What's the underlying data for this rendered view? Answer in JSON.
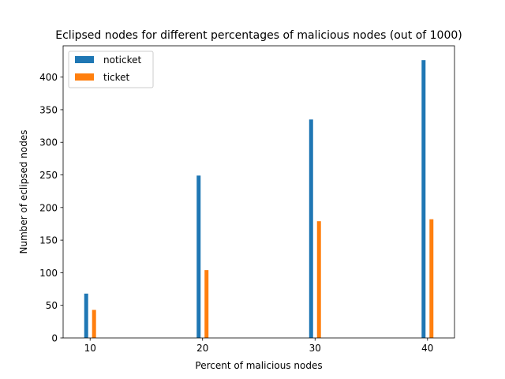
{
  "chart_data": {
    "type": "bar",
    "title": "Eclipsed nodes for different percentages of malicious nodes (out of 1000)",
    "xlabel": "Percent of malicious nodes",
    "ylabel": "Number of eclipsed nodes",
    "x": [
      10,
      20,
      30,
      40
    ],
    "xticks": [
      "10",
      "20",
      "30",
      "40"
    ],
    "xlim": [
      7.6,
      42.4
    ],
    "ylim": [
      0,
      448
    ],
    "yticks": [
      0,
      50,
      100,
      150,
      200,
      250,
      300,
      350,
      400
    ],
    "bar_width": 0.35,
    "series": [
      {
        "name": "noticket",
        "color": "#1f77b4",
        "offset": -0.35,
        "values": [
          68,
          249,
          335,
          426
        ]
      },
      {
        "name": "ticket",
        "color": "#ff7f0e",
        "offset": 0.35,
        "values": [
          43,
          104,
          179,
          182
        ]
      }
    ],
    "legend": "top-left",
    "grid": false
  }
}
